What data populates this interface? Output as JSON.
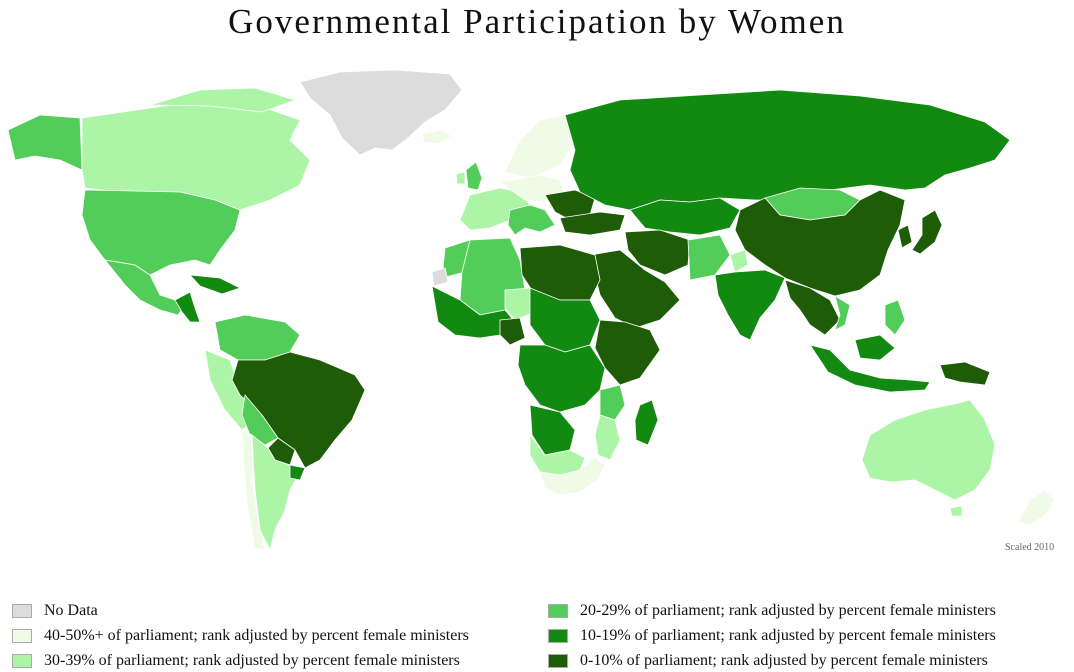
{
  "title": "Governmental Participation by Women",
  "note": "Scaled 2010",
  "colors": {
    "ocean": "#ffffff",
    "no_data": "#dcdcdc",
    "pct_40_50": "#effbe6",
    "pct_30_39": "#adf5a6",
    "pct_20_29": "#53cd5a",
    "pct_10_19": "#128a12",
    "pct_0_10": "#1f5c07"
  },
  "legend": [
    {
      "label": "No Data",
      "color": "#dcdcdc"
    },
    {
      "label": "40-50%+ of parliament; rank adjusted by percent female ministers",
      "color": "#effbe6"
    },
    {
      "label": "30-39% of parliament; rank adjusted by percent female ministers",
      "color": "#adf5a6"
    },
    {
      "label": "20-29% of parliament; rank adjusted by percent female ministers",
      "color": "#53cd5a"
    },
    {
      "label": "10-19% of parliament; rank adjusted by percent female ministers",
      "color": "#128a12"
    },
    {
      "label": "0-10% of parliament; rank adjusted by percent female ministers",
      "color": "#1f5c07"
    }
  ]
}
